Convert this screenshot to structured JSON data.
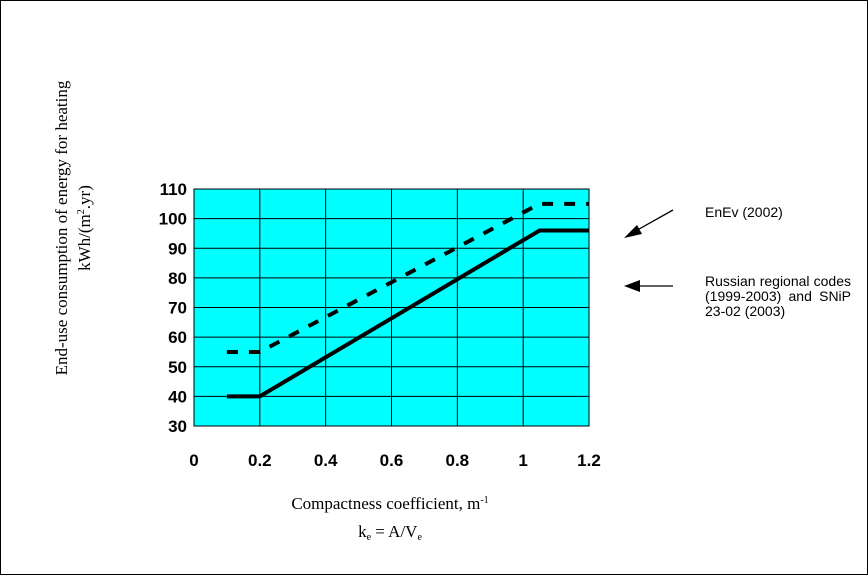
{
  "chart_data": {
    "type": "line",
    "xlim": [
      0,
      1.2
    ],
    "ylim": [
      30,
      110
    ],
    "x_ticks": [
      "0",
      "0.2",
      "0.4",
      "0.6",
      "0.8",
      "1",
      "1.2"
    ],
    "y_ticks": [
      "30",
      "40",
      "50",
      "60",
      "70",
      "80",
      "90",
      "100",
      "110"
    ],
    "grid": true,
    "plot_background": "#00FFFF",
    "xlabel_line1": "Compactness coefficient, m",
    "xlabel_line1_sup": "-1",
    "xlabel_line2_k": "k",
    "xlabel_line2_k_sub": "e",
    "xlabel_line2_rest": " = A/V",
    "xlabel_line2_v_sub": "e",
    "ylabel_line1": "End-use consumption of energy for heating",
    "ylabel_line2_a": "kWh/(m",
    "ylabel_line2_sup": "2",
    "ylabel_line2_b": ".yr)",
    "series": [
      {
        "style": "dashed",
        "color": "#000000",
        "points": [
          [
            0.1,
            55
          ],
          [
            0.2,
            55
          ],
          [
            1.05,
            105
          ],
          [
            1.2,
            105
          ]
        ]
      },
      {
        "style": "solid",
        "color": "#000000",
        "points": [
          [
            0.1,
            40
          ],
          [
            0.2,
            40
          ],
          [
            1.05,
            96
          ],
          [
            1.2,
            96
          ]
        ]
      }
    ]
  },
  "annotations": {
    "enev": "EnEv (2002)",
    "russian": "Russian regional codes (1999-2003) and SNiP 23-02 (2003)"
  }
}
